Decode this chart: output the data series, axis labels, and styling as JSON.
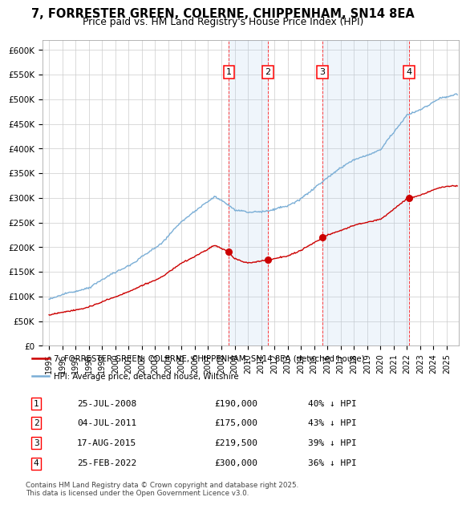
{
  "title": "7, FORRESTER GREEN, COLERNE, CHIPPENHAM, SN14 8EA",
  "subtitle": "Price paid vs. HM Land Registry's House Price Index (HPI)",
  "ylim": [
    0,
    620000
  ],
  "yticks": [
    0,
    50000,
    100000,
    150000,
    200000,
    250000,
    300000,
    350000,
    400000,
    450000,
    500000,
    550000,
    600000
  ],
  "ytick_labels": [
    "£0",
    "£50K",
    "£100K",
    "£150K",
    "£200K",
    "£250K",
    "£300K",
    "£350K",
    "£400K",
    "£450K",
    "£500K",
    "£550K",
    "£600K"
  ],
  "sale_color": "#cc0000",
  "hpi_color": "#7aaed6",
  "sale_years": [
    2008.57,
    2011.51,
    2015.63,
    2022.15
  ],
  "sale_prices": [
    190000,
    175000,
    219500,
    300000
  ],
  "sale_labels": [
    "1",
    "2",
    "3",
    "4"
  ],
  "sale_info": [
    {
      "num": "1",
      "date": "25-JUL-2008",
      "price": "£190,000",
      "pct": "40% ↓ HPI"
    },
    {
      "num": "2",
      "date": "04-JUL-2011",
      "price": "£175,000",
      "pct": "43% ↓ HPI"
    },
    {
      "num": "3",
      "date": "17-AUG-2015",
      "price": "£219,500",
      "pct": "39% ↓ HPI"
    },
    {
      "num": "4",
      "date": "25-FEB-2022",
      "price": "£300,000",
      "pct": "36% ↓ HPI"
    }
  ],
  "legend_sale_label": "7, FORRESTER GREEN, COLERNE, CHIPPENHAM, SN14 8EA (detached house)",
  "legend_hpi_label": "HPI: Average price, detached house, Wiltshire",
  "footer": "Contains HM Land Registry data © Crown copyright and database right 2025.\nThis data is licensed under the Open Government Licence v3.0.",
  "background_color": "#ffffff",
  "grid_color": "#cccccc",
  "shade_color": "#ddeeff"
}
